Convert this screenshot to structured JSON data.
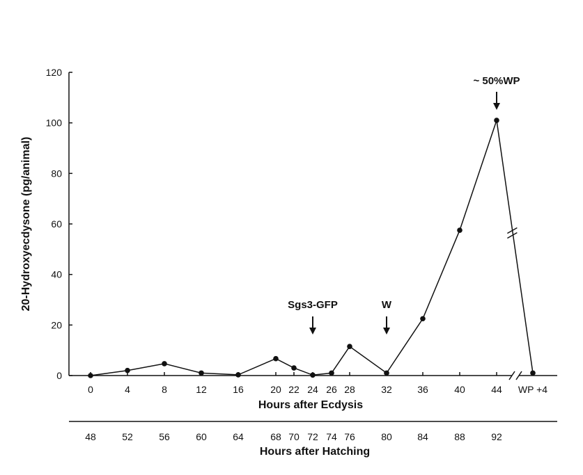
{
  "chart_data": {
    "type": "line",
    "title": "",
    "ylabel": "20-Hydroxyecdysone (pg/animal)",
    "xlabel": "Hours after Ecdysis",
    "x2label": "Hours after Hatching",
    "ylim": [
      0,
      120
    ],
    "yticks": [
      0,
      20,
      40,
      60,
      80,
      100,
      120
    ],
    "x_ticks_ecdysis": [
      "0",
      "4",
      "8",
      "12",
      "16",
      "20",
      "22",
      "24",
      "26",
      "28",
      "32",
      "36",
      "40",
      "44",
      "WP +4"
    ],
    "x_ticks_hatching": [
      "48",
      "52",
      "56",
      "60",
      "64",
      "68",
      "70",
      "72",
      "74",
      "76",
      "80",
      "84",
      "88",
      "92"
    ],
    "series": [
      {
        "x": [
          "0",
          "4",
          "8",
          "12",
          "16",
          "20",
          "22",
          "24",
          "26",
          "28",
          "32",
          "36",
          "40",
          "44",
          "WP +4"
        ],
        "values": [
          0,
          2,
          4.7,
          1,
          0.3,
          6.7,
          3,
          0.2,
          1,
          11.5,
          1,
          22.5,
          57.5,
          101,
          1
        ]
      }
    ],
    "annotations": [
      {
        "text": "Sgs3-GFP",
        "at": "24"
      },
      {
        "text": "W",
        "at": "32"
      },
      {
        "text": "~ 50%WP",
        "at": "44"
      }
    ],
    "axis_break": true
  }
}
